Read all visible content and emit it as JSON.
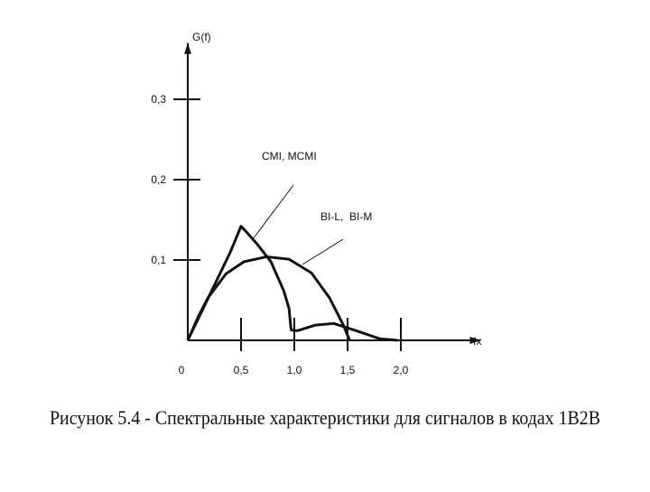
{
  "chart_data": {
    "type": "line",
    "title": "Рисунок 5.4 - Спектральные характеристики для сигналов в кодах 1В2В",
    "y_label": "G(f)",
    "x_label": "fx",
    "xlim": [
      0,
      2.75
    ],
    "ylim": [
      0,
      0.37
    ],
    "xticks": [
      0,
      {
        "value": 0.5,
        "label": "0,5"
      },
      {
        "value": 1.0,
        "label": "1,0"
      },
      {
        "value": 1.5,
        "label": "1,5"
      },
      {
        "value": 2.0,
        "label": "2,0"
      }
    ],
    "yticks": [
      {
        "value": 0.1,
        "label": "0,1"
      },
      {
        "value": 0.2,
        "label": "0,2"
      },
      {
        "value": 0.3,
        "label": "0,3"
      }
    ],
    "series": [
      {
        "name": "CMI, MCMI",
        "color": "#111111",
        "x": [
          0,
          0.2,
          0.4,
          0.5,
          0.55,
          0.65,
          0.78,
          0.9,
          0.95,
          0.97,
          1.03,
          1.2,
          1.37,
          1.58,
          1.8,
          1.97
        ],
        "values": [
          0,
          0.055,
          0.11,
          0.142,
          0.135,
          0.12,
          0.098,
          0.062,
          0.04,
          0.013,
          0.012,
          0.019,
          0.021,
          0.012,
          0.002,
          0
        ]
      },
      {
        "name": "BI-L,  BI-M",
        "color": "#111111",
        "x": [
          0,
          0.1,
          0.19,
          0.36,
          0.53,
          0.74,
          0.95,
          1.16,
          1.33,
          1.46,
          1.52
        ],
        "values": [
          0,
          0.03,
          0.053,
          0.083,
          0.098,
          0.104,
          0.101,
          0.084,
          0.053,
          0.019,
          0
        ]
      }
    ]
  }
}
